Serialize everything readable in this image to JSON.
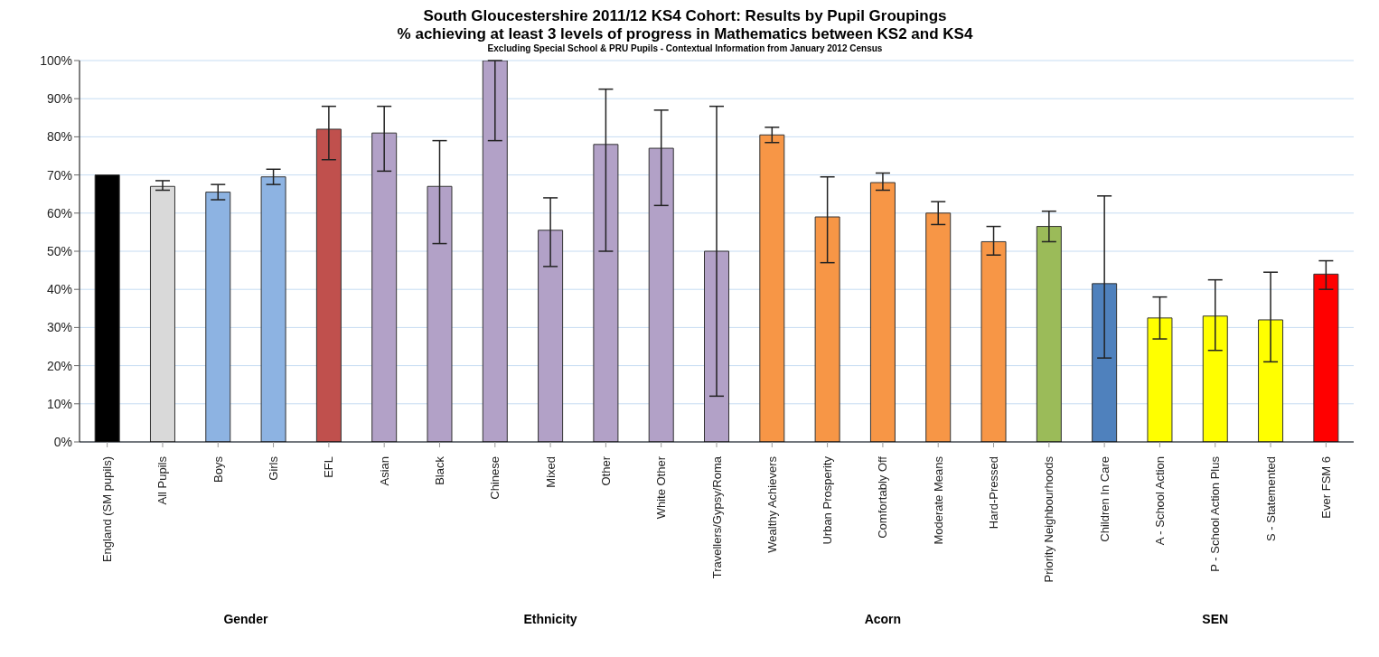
{
  "chart_data": {
    "type": "bar",
    "title": "South Gloucestershire 2011/12 KS4 Cohort: Results by Pupil Groupings",
    "subtitle": "% achieving at least 3 levels of progress in Mathematics between KS2 and KS4",
    "annotations": [
      "Excluding Special School & PRU Pupils - Contextual Information from January 2012 Census",
      "Gender",
      "Ethnicity",
      "Acorn",
      "SEN"
    ],
    "categories": [
      "England (SM pupils)",
      "All Pupils",
      "Boys",
      "Girls",
      "EFL",
      "Asian",
      "Black",
      "Chinese",
      "Mixed",
      "Other",
      "White Other",
      "Travellers/Gypsy/Roma",
      "Wealthy Achievers",
      "Urban Prosperity",
      "Comfortably Off",
      "Moderate Means",
      "Hard-Pressed",
      "Priority Neighbourhoods",
      "Children In Care",
      "A - School Action",
      "P - School Action Plus",
      "S - Statemented",
      "Ever FSM 6"
    ],
    "values": [
      70,
      67,
      65.5,
      69.5,
      82,
      81,
      67,
      100,
      55.5,
      78,
      77,
      50,
      80.5,
      59,
      68,
      60,
      52.5,
      56.5,
      41.5,
      32.5,
      33,
      32,
      44
    ],
    "errors": [
      null,
      [
        66,
        68.5
      ],
      [
        63.5,
        67.5
      ],
      [
        67.5,
        71.5
      ],
      [
        74,
        88
      ],
      [
        71,
        88
      ],
      [
        52,
        79
      ],
      [
        79,
        100
      ],
      [
        46,
        64
      ],
      [
        50,
        92.5
      ],
      [
        62,
        87
      ],
      [
        12,
        88
      ],
      [
        78.5,
        82.5
      ],
      [
        47,
        69.5
      ],
      [
        66,
        70.5
      ],
      [
        57,
        63
      ],
      [
        49,
        56.5
      ],
      [
        52.5,
        60.5
      ],
      [
        22,
        64.5
      ],
      [
        27,
        38
      ],
      [
        24,
        42.5
      ],
      [
        21,
        44.5
      ],
      [
        40,
        47.5
      ]
    ],
    "colors": [
      "#000000",
      "#d9d9d9",
      "#8db3e2",
      "#8db3e2",
      "#c0504d",
      "#b2a1c7",
      "#b2a1c7",
      "#b2a1c7",
      "#b2a1c7",
      "#b2a1c7",
      "#b2a1c7",
      "#b2a1c7",
      "#f79646",
      "#f79646",
      "#f79646",
      "#f79646",
      "#f79646",
      "#9bbb59",
      "#4f81bd",
      "#ffff00",
      "#ffff00",
      "#ffff00",
      "#ff0000"
    ],
    "ylim": [
      0,
      100
    ],
    "yticks": [
      {
        "value": 0,
        "label": "0%"
      },
      {
        "value": 10,
        "label": "10%"
      },
      {
        "value": 20,
        "label": "20%"
      },
      {
        "value": 30,
        "label": "30%"
      },
      {
        "value": 40,
        "label": "40%"
      },
      {
        "value": 50,
        "label": "50%"
      },
      {
        "value": 60,
        "label": "60%"
      },
      {
        "value": 70,
        "label": "70%"
      },
      {
        "value": 80,
        "label": "80%"
      },
      {
        "value": 90,
        "label": "90%"
      },
      {
        "value": 100,
        "label": "100%"
      }
    ],
    "grid": "y"
  }
}
